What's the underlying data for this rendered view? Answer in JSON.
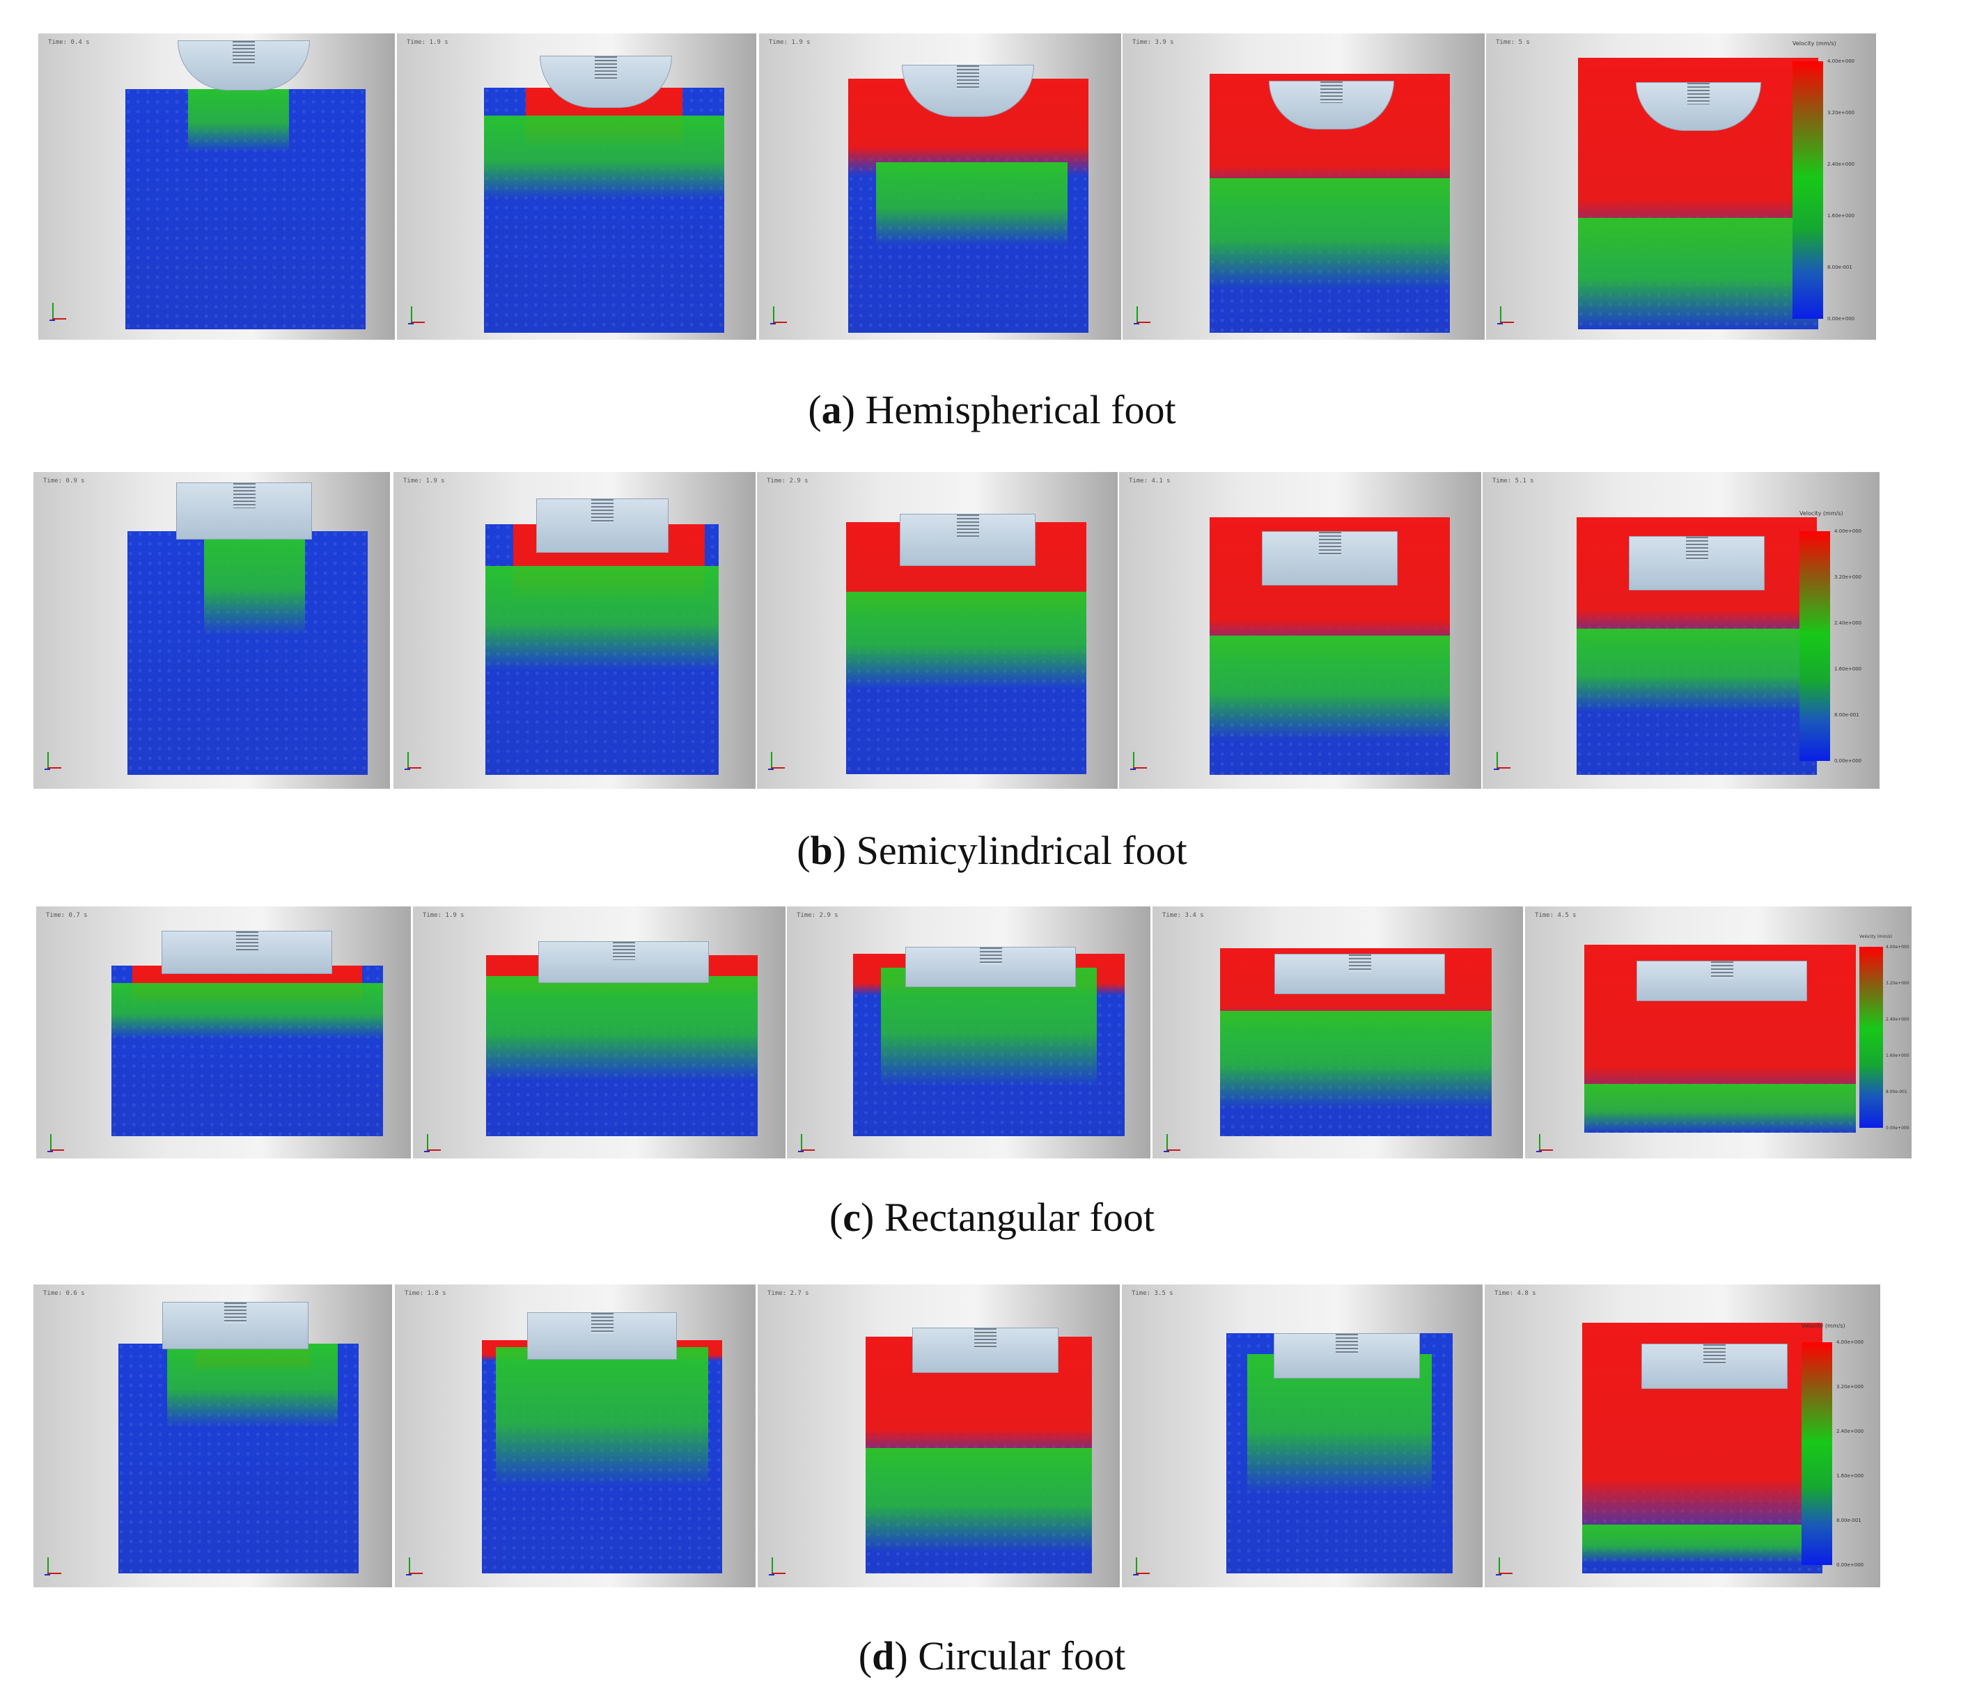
{
  "legend": {
    "title": "Velocity (mm/s)",
    "ticks": [
      "4.00e+000",
      "3.20e+000",
      "2.40e+000",
      "1.60e+000",
      "8.00e-001",
      "0.00e+000"
    ]
  },
  "colors": {
    "high": "#ff0000",
    "mid": "#18c818",
    "low": "#0a1ee8"
  },
  "rows": [
    {
      "letter": "a",
      "label": "Hemispherical foot",
      "foot_shape": "hemisphere",
      "frames": [
        {
          "time": "Time: 0.4 s"
        },
        {
          "time": "Time: 1.9 s"
        },
        {
          "time": "Time: 1.9 s"
        },
        {
          "time": "Time: 3.9 s"
        },
        {
          "time": "Time: 5 s"
        }
      ]
    },
    {
      "letter": "b",
      "label": "Semicylindrical foot",
      "foot_shape": "semicylinder",
      "frames": [
        {
          "time": "Time: 0.9 s"
        },
        {
          "time": "Time: 1.9 s"
        },
        {
          "time": "Time: 2.9 s"
        },
        {
          "time": "Time: 4.1 s"
        },
        {
          "time": "Time: 5.1 s"
        }
      ]
    },
    {
      "letter": "c",
      "label": "Rectangular foot",
      "foot_shape": "rectangle",
      "frames": [
        {
          "time": "Time: 0.7 s"
        },
        {
          "time": "Time: 1.9 s"
        },
        {
          "time": "Time: 2.9 s"
        },
        {
          "time": "Time: 3.4 s"
        },
        {
          "time": "Time: 4.5 s"
        }
      ]
    },
    {
      "letter": "d",
      "label": "Circular foot",
      "foot_shape": "cylinder",
      "frames": [
        {
          "time": "Time: 0.6 s"
        },
        {
          "time": "Time: 1.8 s"
        },
        {
          "time": "Time: 2.7 s"
        },
        {
          "time": "Time: 3.5 s"
        },
        {
          "time": "Time: 4.8 s"
        }
      ]
    }
  ]
}
